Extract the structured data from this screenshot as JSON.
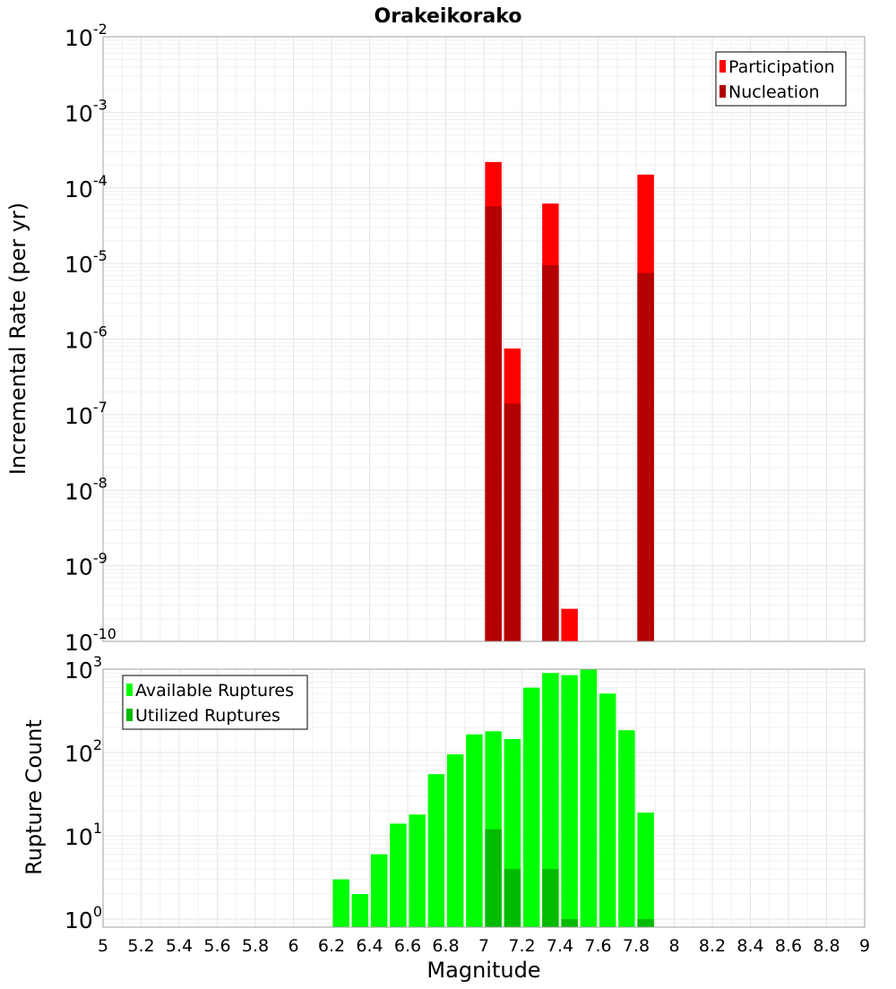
{
  "chart_data": [
    {
      "type": "bar",
      "title": "Orakeikorako",
      "xlabel": "",
      "ylabel": "Incremental Rate (per yr)",
      "yscale": "log",
      "ylim": [
        1e-10,
        0.01
      ],
      "xlim": [
        5,
        9
      ],
      "grid": true,
      "legend_position": "top-right",
      "series": [
        {
          "name": "Participation",
          "color": "#ff0000",
          "x": [
            7.05,
            7.15,
            7.35,
            7.45,
            7.85
          ],
          "values": [
            0.00022,
            7.5e-07,
            6.2e-05,
            2.7e-10,
            0.00015
          ]
        },
        {
          "name": "Nucleation",
          "color": "#b30000",
          "x": [
            7.05,
            7.15,
            7.35,
            7.85
          ],
          "values": [
            5.7e-05,
            1.4e-07,
            9.5e-06,
            7.5e-06
          ]
        }
      ]
    },
    {
      "type": "bar",
      "xlabel": "Magnitude",
      "ylabel": "Rupture Count",
      "yscale": "log",
      "ylim": [
        0.8,
        1000
      ],
      "xlim": [
        5,
        9
      ],
      "grid": true,
      "legend_position": "top-left",
      "series": [
        {
          "name": "Available Ruptures",
          "color": "#00ff00",
          "x": [
            6.25,
            6.35,
            6.45,
            6.55,
            6.65,
            6.75,
            6.85,
            6.95,
            7.05,
            7.15,
            7.25,
            7.35,
            7.45,
            7.55,
            7.65,
            7.75,
            7.85
          ],
          "values": [
            3,
            2,
            6,
            14,
            18,
            55,
            95,
            165,
            180,
            145,
            600,
            900,
            850,
            1000,
            510,
            185,
            19
          ]
        },
        {
          "name": "Utilized Ruptures",
          "color": "#00bb00",
          "x": [
            7.05,
            7.15,
            7.35,
            7.45,
            7.85
          ],
          "values": [
            12,
            4,
            4,
            1,
            1
          ]
        }
      ]
    }
  ],
  "x_ticks": [
    "5",
    "5.2",
    "5.4",
    "5.6",
    "5.8",
    "6",
    "6.2",
    "6.4",
    "6.6",
    "6.8",
    "7",
    "7.2",
    "7.4",
    "7.6",
    "7.8",
    "8",
    "8.2",
    "8.4",
    "8.6",
    "8.8",
    "9"
  ],
  "top_y_ticks": [
    {
      "base": "10",
      "exp": "-2"
    },
    {
      "base": "10",
      "exp": "-3"
    },
    {
      "base": "10",
      "exp": "-4"
    },
    {
      "base": "10",
      "exp": "-5"
    },
    {
      "base": "10",
      "exp": "-6"
    },
    {
      "base": "10",
      "exp": "-7"
    },
    {
      "base": "10",
      "exp": "-8"
    },
    {
      "base": "10",
      "exp": "-9"
    },
    {
      "base": "10",
      "exp": "-10"
    }
  ],
  "bottom_y_ticks": [
    {
      "base": "10",
      "exp": "3"
    },
    {
      "base": "10",
      "exp": "2"
    },
    {
      "base": "10",
      "exp": "1"
    },
    {
      "base": "10",
      "exp": "0"
    }
  ]
}
